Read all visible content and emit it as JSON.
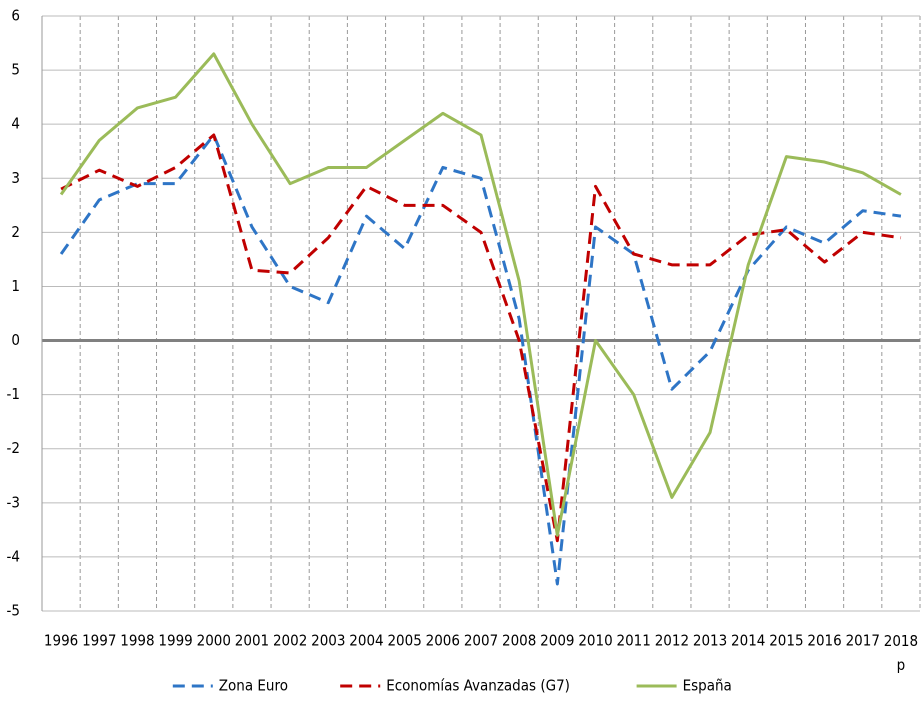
{
  "chart_data": {
    "type": "line",
    "categories": [
      "1996",
      "1997",
      "1998",
      "1999",
      "2000",
      "2001",
      "2002",
      "2003",
      "2004",
      "2005",
      "2006",
      "2007",
      "2008",
      "2009",
      "2010",
      "2011",
      "2012",
      "2013",
      "2014",
      "2015",
      "2016",
      "2017",
      "2018 p"
    ],
    "series": [
      {
        "name": "Zona Euro",
        "color": "#2e75c6",
        "dashed": true,
        "values": [
          1.6,
          2.6,
          2.9,
          2.9,
          3.8,
          2.1,
          1.0,
          0.7,
          2.3,
          1.7,
          3.2,
          3.0,
          0.4,
          -4.5,
          2.1,
          1.6,
          -0.9,
          -0.2,
          1.3,
          2.1,
          1.8,
          2.4,
          2.3
        ]
      },
      {
        "name": "Economías Avanzadas (G7)",
        "color": "#c00000",
        "dashed": true,
        "values": [
          2.8,
          3.15,
          2.85,
          3.2,
          3.8,
          1.3,
          1.25,
          1.9,
          2.85,
          2.5,
          2.5,
          2.0,
          0.0,
          -3.7,
          2.85,
          1.6,
          1.4,
          1.4,
          1.95,
          2.05,
          1.45,
          2.0,
          1.9
        ]
      },
      {
        "name": "España",
        "color": "#9bbb59",
        "dashed": false,
        "values": [
          2.7,
          3.7,
          4.3,
          4.5,
          5.3,
          4.0,
          2.9,
          3.2,
          3.2,
          3.7,
          4.2,
          3.8,
          1.1,
          -3.6,
          0.0,
          -1.0,
          -2.9,
          -1.7,
          1.4,
          3.4,
          3.3,
          3.1,
          2.7
        ]
      }
    ],
    "ylim": [
      -5,
      6
    ],
    "yticks": [
      -5,
      -4,
      -3,
      -2,
      -1,
      0,
      1,
      2,
      3,
      4,
      5,
      6
    ],
    "grid": true,
    "legend": "bottom"
  }
}
